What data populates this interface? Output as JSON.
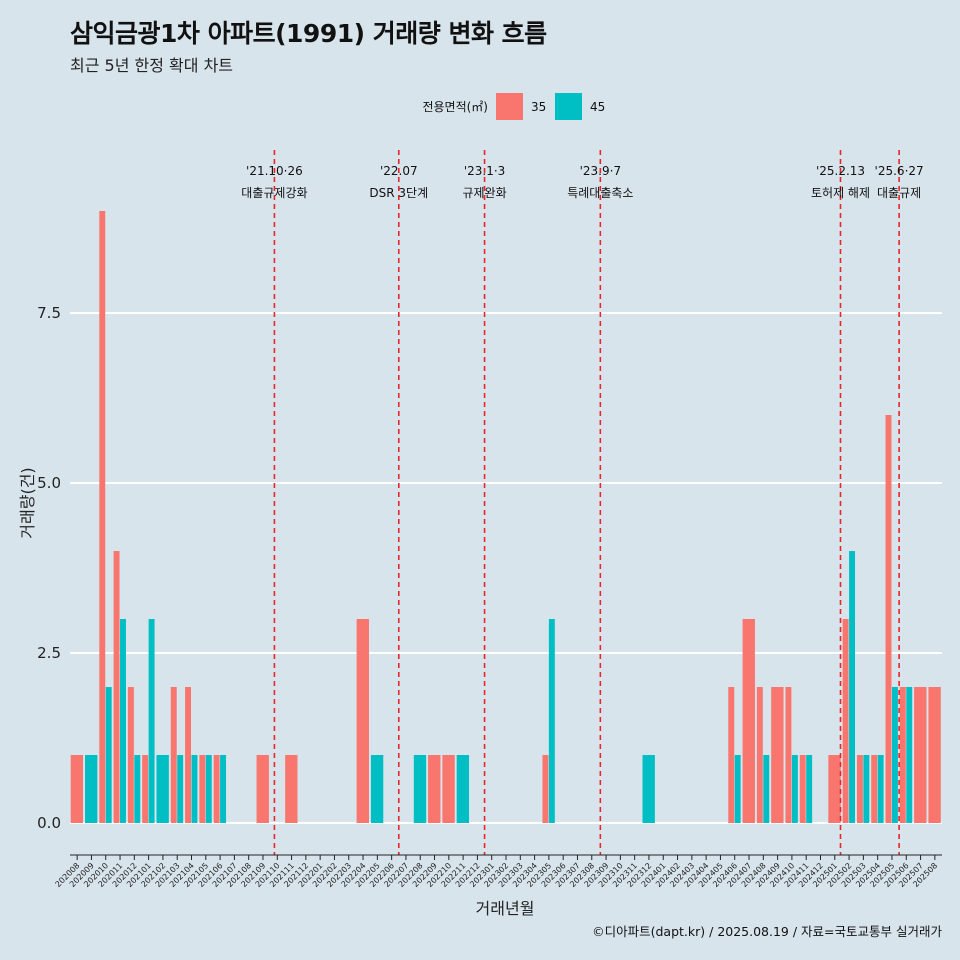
{
  "title": "삼익금광1차 아파트(1991) 거래량 변화 흐름",
  "subtitle": "최근 5년 한정 확대 차트",
  "caption": "©디아파트(dapt.kr) / 2025.08.19 / 자료=국토교통부 실거래가",
  "chart_data": {
    "type": "bar",
    "xlabel": "거래년월",
    "ylabel": "거래량(건)",
    "ylim": [
      0,
      9
    ],
    "yticks": [
      "0.0",
      "2.5",
      "5.0",
      "7.5"
    ],
    "ytick_values": [
      0,
      2.5,
      5,
      7.5
    ],
    "legend_title": "전용면적(㎡)",
    "legend_position": "top",
    "categories": [
      "202008",
      "202009",
      "202010",
      "202011",
      "202012",
      "202101",
      "202102",
      "202103",
      "202104",
      "202105",
      "202106",
      "202107",
      "202108",
      "202109",
      "202110",
      "202111",
      "202112",
      "202201",
      "202202",
      "202203",
      "202204",
      "202205",
      "202206",
      "202207",
      "202208",
      "202209",
      "202210",
      "202211",
      "202212",
      "202301",
      "202302",
      "202303",
      "202304",
      "202305",
      "202306",
      "202307",
      "202308",
      "202309",
      "202310",
      "202311",
      "202312",
      "202401",
      "202402",
      "202403",
      "202404",
      "202405",
      "202406",
      "202407",
      "202408",
      "202409",
      "202410",
      "202411",
      "202412",
      "202501",
      "202502",
      "202503",
      "202504",
      "202505",
      "202506",
      "202507",
      "202508"
    ],
    "series": [
      {
        "name": "35",
        "color": "#F8766D",
        "values": [
          1,
          0,
          9,
          4,
          2,
          1,
          0,
          2,
          2,
          1,
          1,
          0,
          0,
          1,
          0,
          1,
          0,
          0,
          0,
          0,
          3,
          0,
          0,
          0,
          0,
          1,
          1,
          0,
          0,
          0,
          0,
          0,
          0,
          1,
          0,
          0,
          0,
          0,
          0,
          0,
          0,
          0,
          0,
          0,
          0,
          0,
          2,
          3,
          2,
          2,
          2,
          1,
          0,
          1,
          3,
          1,
          1,
          6,
          2,
          2,
          2
        ]
      },
      {
        "name": "45",
        "color": "#00BFC4",
        "values": [
          0,
          1,
          2,
          3,
          1,
          3,
          1,
          1,
          1,
          1,
          1,
          0,
          0,
          0,
          0,
          0,
          0,
          0,
          0,
          0,
          0,
          1,
          0,
          0,
          1,
          0,
          0,
          1,
          0,
          0,
          0,
          0,
          0,
          3,
          0,
          0,
          0,
          0,
          0,
          0,
          1,
          0,
          0,
          0,
          0,
          0,
          1,
          0,
          1,
          0,
          1,
          1,
          0,
          0,
          4,
          1,
          1,
          2,
          2,
          0,
          0
        ]
      }
    ],
    "grid": true,
    "annotations": [
      {
        "date_label": "'21.10·26",
        "text": "대출규제강화",
        "category": "202110",
        "offset": 0.3
      },
      {
        "date_label": "'22.07",
        "text": "DSR 3단계",
        "category": "202207",
        "offset": 0.0
      },
      {
        "date_label": "'23.1·3",
        "text": "규제완화",
        "category": "202301",
        "offset": 0.0
      },
      {
        "date_label": "'23.9·7",
        "text": "특례대출축소",
        "category": "202309",
        "offset": 0.1
      },
      {
        "date_label": "'25.2.13",
        "text": "토허제 해제",
        "category": "202502",
        "offset": -0.1
      },
      {
        "date_label": "'25.6·27",
        "text": "대출규제",
        "category": "202506",
        "offset": 0.0
      }
    ]
  }
}
